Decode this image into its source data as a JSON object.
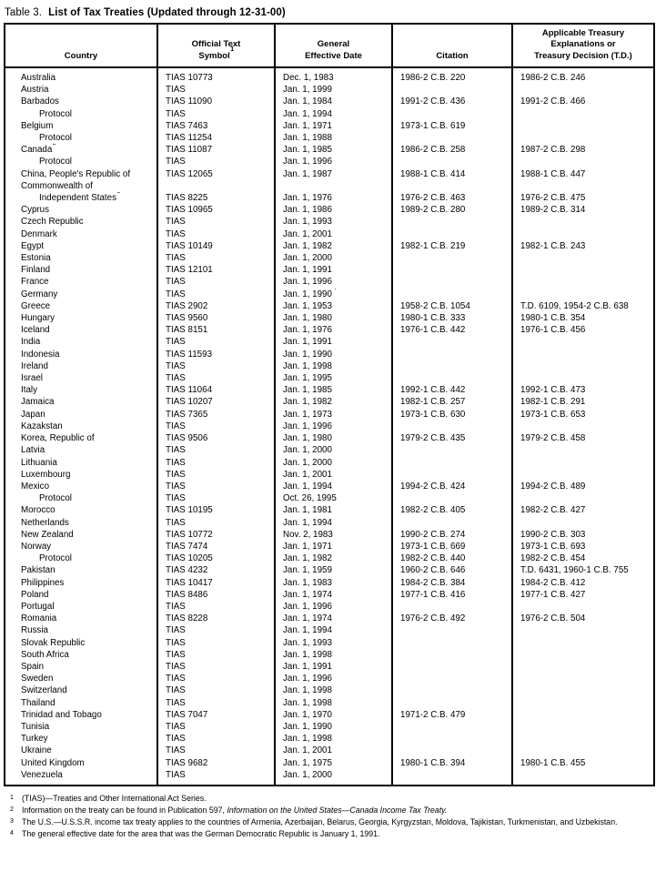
{
  "title": {
    "prefix": "Table 3.",
    "text": "List of Tax Treaties (Updated through 12-31-00)"
  },
  "table": {
    "columns": [
      {
        "id": "country",
        "lines": [
          "Country"
        ]
      },
      {
        "id": "symbol",
        "lines": [
          "Official Text",
          "Symbol"
        ],
        "sup": "1"
      },
      {
        "id": "date",
        "lines": [
          "General",
          "Effective Date"
        ]
      },
      {
        "id": "citation",
        "lines": [
          "Citation"
        ]
      },
      {
        "id": "td",
        "lines": [
          "Applicable Treasury",
          "Explanations or",
          "Treasury Decision (T.D.)"
        ]
      }
    ],
    "rows": [
      {
        "country": "Australia",
        "symbol": "TIAS 10773",
        "date": "Dec. 1, 1983",
        "citation": "1986-2 C.B. 220",
        "td": "1986-2 C.B. 246"
      },
      {
        "country": "Austria",
        "symbol": "TIAS",
        "date": "Jan. 1, 1999",
        "citation": "",
        "td": ""
      },
      {
        "country": "Barbados",
        "symbol": "TIAS 11090",
        "date": "Jan. 1, 1984",
        "citation": "1991-2 C.B. 436",
        "td": "1991-2 C.B. 466"
      },
      {
        "country": "Protocol",
        "indent": true,
        "symbol": "TIAS",
        "date": "Jan. 1, 1994",
        "citation": "",
        "td": ""
      },
      {
        "country": "Belgium",
        "symbol": "TIAS 7463",
        "date": "Jan. 1, 1971",
        "citation": "1973-1 C.B. 619",
        "td": ""
      },
      {
        "country": "Protocol",
        "indent": true,
        "symbol": "TIAS 11254",
        "date": "Jan. 1, 1988",
        "citation": "",
        "td": ""
      },
      {
        "country": "Canada",
        "sup": "2",
        "symbol": "TIAS 11087",
        "date": "Jan. 1, 1985",
        "citation": "1986-2 C.B. 258",
        "td": "1987-2 C.B. 298"
      },
      {
        "country": "Protocol",
        "indent": true,
        "symbol": "TIAS",
        "date": "Jan. 1, 1996",
        "citation": "",
        "td": ""
      },
      {
        "country": "China, People's Republic of",
        "symbol": "TIAS 12065",
        "date": "Jan. 1, 1987",
        "citation": "1988-1 C.B. 414",
        "td": "1988-1 C.B. 447"
      },
      {
        "country": "Commonwealth of",
        "symbol": "",
        "date": "",
        "citation": "",
        "td": ""
      },
      {
        "country": "Independent States",
        "sup": "3",
        "indent": true,
        "symbol": "TIAS 8225",
        "date": "Jan. 1, 1976",
        "citation": "1976-2 C.B. 463",
        "td": "1976-2 C.B. 475"
      },
      {
        "country": "Cyprus",
        "symbol": "TIAS 10965",
        "date": "Jan. 1, 1986",
        "citation": "1989-2 C.B. 280",
        "td": "1989-2 C.B. 314"
      },
      {
        "country": "Czech Republic",
        "symbol": "TIAS",
        "date": "Jan. 1, 1993",
        "citation": "",
        "td": ""
      },
      {
        "country": "Denmark",
        "symbol": "TIAS",
        "date": "Jan. 1, 2001",
        "citation": "",
        "td": ""
      },
      {
        "country": "Egypt",
        "symbol": "TIAS 10149",
        "date": "Jan. 1, 1982",
        "citation": "1982-1 C.B. 219",
        "td": "1982-1 C.B. 243"
      },
      {
        "country": "Estonia",
        "symbol": "TIAS",
        "date": "Jan. 1, 2000",
        "citation": "",
        "td": ""
      },
      {
        "country": "Finland",
        "symbol": "TIAS 12101",
        "date": "Jan. 1, 1991",
        "citation": "",
        "td": ""
      },
      {
        "country": "France",
        "symbol": "TIAS",
        "date": "Jan. 1, 1996",
        "citation": "",
        "td": ""
      },
      {
        "country": "Germany",
        "symbol": "TIAS",
        "date": "Jan. 1, 1990",
        "dateSup": "4",
        "citation": "",
        "td": ""
      },
      {
        "country": "Greece",
        "symbol": "TIAS 2902",
        "date": "Jan. 1, 1953",
        "citation": "1958-2 C.B. 1054",
        "td": "T.D. 6109, 1954-2 C.B. 638"
      },
      {
        "country": "Hungary",
        "symbol": "TIAS 9560",
        "date": "Jan. 1, 1980",
        "citation": "1980-1 C.B. 333",
        "td": "1980-1 C.B. 354"
      },
      {
        "country": "Iceland",
        "symbol": "TIAS 8151",
        "date": "Jan. 1, 1976",
        "citation": "1976-1 C.B. 442",
        "td": "1976-1 C.B. 456"
      },
      {
        "country": "India",
        "symbol": "TIAS",
        "date": "Jan. 1, 1991",
        "citation": "",
        "td": ""
      },
      {
        "country": "Indonesia",
        "symbol": "TIAS 11593",
        "date": "Jan. 1, 1990",
        "citation": "",
        "td": ""
      },
      {
        "country": "Ireland",
        "symbol": "TIAS",
        "date": "Jan. 1, 1998",
        "citation": "",
        "td": ""
      },
      {
        "country": "Israel",
        "symbol": "TIAS",
        "date": "Jan. 1, 1995",
        "citation": "",
        "td": ""
      },
      {
        "country": "Italy",
        "symbol": "TIAS 11064",
        "date": "Jan. 1, 1985",
        "citation": "1992-1 C.B. 442",
        "td": "1992-1 C.B. 473"
      },
      {
        "country": "Jamaica",
        "symbol": "TIAS 10207",
        "date": "Jan. 1, 1982",
        "citation": "1982-1 C.B. 257",
        "td": "1982-1 C.B. 291"
      },
      {
        "country": "Japan",
        "symbol": "TIAS 7365",
        "date": "Jan. 1, 1973",
        "citation": "1973-1 C.B. 630",
        "td": "1973-1 C.B. 653"
      },
      {
        "country": "Kazakstan",
        "symbol": "TIAS",
        "date": "Jan. 1, 1996",
        "citation": "",
        "td": ""
      },
      {
        "country": "Korea, Republic of",
        "symbol": "TIAS 9506",
        "date": "Jan. 1, 1980",
        "citation": "1979-2 C.B. 435",
        "td": "1979-2 C.B. 458"
      },
      {
        "country": "Latvia",
        "symbol": "TIAS",
        "date": "Jan. 1, 2000",
        "citation": "",
        "td": ""
      },
      {
        "country": "Lithuania",
        "symbol": "TIAS",
        "date": "Jan. 1, 2000",
        "citation": "",
        "td": ""
      },
      {
        "country": "Luxembourg",
        "symbol": "TIAS",
        "date": "Jan. 1, 2001",
        "citation": "",
        "td": ""
      },
      {
        "country": "Mexico",
        "symbol": "TIAS",
        "date": "Jan. 1, 1994",
        "citation": "1994-2 C.B. 424",
        "td": "1994-2 C.B. 489"
      },
      {
        "country": "Protocol",
        "indent": true,
        "symbol": "TIAS",
        "date": "Oct. 26, 1995",
        "citation": "",
        "td": ""
      },
      {
        "country": "Morocco",
        "symbol": "TIAS 10195",
        "date": "Jan. 1, 1981",
        "citation": "1982-2 C.B. 405",
        "td": "1982-2 C.B. 427"
      },
      {
        "country": "Netherlands",
        "symbol": "TIAS",
        "date": "Jan. 1, 1994",
        "citation": "",
        "td": ""
      },
      {
        "country": "New Zealand",
        "symbol": "TIAS 10772",
        "date": "Nov. 2, 1983",
        "citation": "1990-2 C.B. 274",
        "td": "1990-2 C.B. 303"
      },
      {
        "country": "Norway",
        "symbol": "TIAS 7474",
        "date": "Jan. 1, 1971",
        "citation": "1973-1 C.B. 669",
        "td": "1973-1 C.B. 693"
      },
      {
        "country": "Protocol",
        "indent": true,
        "symbol": "TIAS 10205",
        "date": "Jan. 1, 1982",
        "citation": "1982-2 C.B. 440",
        "td": "1982-2 C.B. 454"
      },
      {
        "country": "Pakistan",
        "symbol": "TIAS 4232",
        "date": "Jan. 1, 1959",
        "citation": "1960-2 C.B. 646",
        "td": "T.D. 6431, 1960-1 C.B. 755"
      },
      {
        "country": "Philippines",
        "symbol": "TIAS 10417",
        "date": "Jan. 1, 1983",
        "citation": "1984-2 C.B. 384",
        "td": "1984-2 C.B. 412"
      },
      {
        "country": "Poland",
        "symbol": "TIAS 8486",
        "date": "Jan. 1, 1974",
        "citation": "1977-1 C.B. 416",
        "td": "1977-1 C.B. 427"
      },
      {
        "country": "Portugal",
        "symbol": "TIAS",
        "date": "Jan. 1, 1996",
        "citation": "",
        "td": ""
      },
      {
        "country": "Romania",
        "symbol": "TIAS 8228",
        "date": "Jan. 1, 1974",
        "citation": "1976-2 C.B. 492",
        "td": "1976-2 C.B. 504"
      },
      {
        "country": "Russia",
        "symbol": "TIAS",
        "date": "Jan. 1, 1994",
        "citation": "",
        "td": ""
      },
      {
        "country": "Slovak Republic",
        "symbol": "TIAS",
        "date": "Jan. 1, 1993",
        "citation": "",
        "td": ""
      },
      {
        "country": "South Africa",
        "symbol": "TIAS",
        "date": "Jan. 1, 1998",
        "citation": "",
        "td": ""
      },
      {
        "country": "Spain",
        "symbol": "TIAS",
        "date": "Jan. 1, 1991",
        "citation": "",
        "td": ""
      },
      {
        "country": "Sweden",
        "symbol": "TIAS",
        "date": "Jan. 1, 1996",
        "citation": "",
        "td": ""
      },
      {
        "country": "Switzerland",
        "symbol": "TIAS",
        "date": "Jan. 1, 1998",
        "citation": "",
        "td": ""
      },
      {
        "country": "Thailand",
        "symbol": "TIAS",
        "date": "Jan. 1, 1998",
        "citation": "",
        "td": ""
      },
      {
        "country": "Trinidad and Tobago",
        "symbol": "TIAS 7047",
        "date": "Jan. 1, 1970",
        "citation": "1971-2 C.B. 479",
        "td": ""
      },
      {
        "country": "Tunisia",
        "symbol": "TIAS",
        "date": "Jan. 1, 1990",
        "citation": "",
        "td": ""
      },
      {
        "country": "Turkey",
        "symbol": "TIAS",
        "date": "Jan. 1, 1998",
        "citation": "",
        "td": ""
      },
      {
        "country": "Ukraine",
        "symbol": "TIAS",
        "date": "Jan. 1, 2001",
        "citation": "",
        "td": ""
      },
      {
        "country": "United Kingdom",
        "symbol": "TIAS 9682",
        "date": "Jan. 1, 1975",
        "citation": "1980-1 C.B. 394",
        "td": "1980-1 C.B. 455"
      },
      {
        "country": "Venezuela",
        "symbol": "TIAS",
        "date": "Jan. 1, 2000",
        "citation": "",
        "td": ""
      }
    ]
  },
  "footnotes": [
    {
      "num": "1",
      "text": "(TIAS)—Treaties and Other International Act Series."
    },
    {
      "num": "2",
      "text": "Information on the treaty can be found in Publication 597, ",
      "italic": "Information on the United States—Canada Income Tax Treaty."
    },
    {
      "num": "3",
      "text": "The U.S.—U.S.S.R. income tax treaty applies to the countries of Armenia, Azerbaijan, Belarus, Georgia, Kyrgyzstan, Moldova, Tajikistan, Turkmenistan, and Uzbekistan."
    },
    {
      "num": "4",
      "text": "The general effective date for the area that was the German Democratic Republic is January 1, 1991."
    }
  ]
}
